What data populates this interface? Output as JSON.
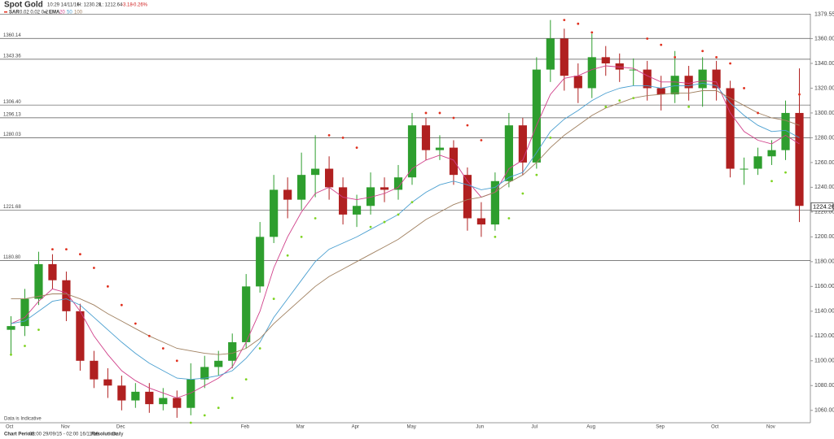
{
  "chart_data": {
    "type": "candlestick",
    "title": "Spot Gold",
    "time": "10:29 14/11/16",
    "high_text": "H: 1230.28",
    "low_text": "L: 1212.64",
    "change": "-3.18",
    "change_pct": "-0.26%",
    "sar_label": "SAR",
    "sar_params": "0.02 0.02 0.2",
    "ema_label": "EMA",
    "ema_params": [
      "20",
      "50",
      "100"
    ],
    "note": "Data is Indicative",
    "period_label": "Chart Period:",
    "period": "03:00 29/09/15 - 02:00 16/11/16",
    "resolution_label": "Resolution:",
    "resolution": "Daily",
    "last_price": 1224.26,
    "categories": [
      "Oct",
      null,
      null,
      null,
      "Nov",
      null,
      null,
      null,
      "Dec",
      null,
      null,
      null,
      null,
      null,
      null,
      null,
      null,
      "Feb",
      null,
      null,
      null,
      "Mar",
      null,
      null,
      null,
      "Apr",
      null,
      null,
      null,
      "May",
      null,
      null,
      null,
      null,
      "Jun",
      null,
      null,
      null,
      "Jul",
      null,
      null,
      null,
      "Aug",
      null,
      null,
      null,
      null,
      "Sep",
      null,
      null,
      null,
      "Oct",
      null,
      null,
      null,
      "Nov",
      null,
      null
    ],
    "open": [
      1125,
      1128,
      1150,
      1178,
      1165,
      1140,
      1100,
      1085,
      1080,
      1068,
      1075,
      1065,
      1070,
      1062,
      1085,
      1095,
      1100,
      1115,
      1160,
      1200,
      1238,
      1230,
      1250,
      1255,
      1240,
      1218,
      1225,
      1240,
      1238,
      1248,
      1290,
      1270,
      1272,
      1250,
      1215,
      1210,
      1245,
      1290,
      1260,
      1335,
      1360,
      1330,
      1320,
      1345,
      1340,
      1335,
      1335,
      1320,
      1315,
      1330,
      1320,
      1335,
      1320,
      1255,
      1255,
      1265,
      1270,
      1300
    ],
    "high": [
      1136,
      1158,
      1188,
      1186,
      1172,
      1146,
      1108,
      1094,
      1088,
      1082,
      1082,
      1078,
      1076,
      1098,
      1104,
      1108,
      1122,
      1170,
      1212,
      1250,
      1248,
      1268,
      1282,
      1265,
      1248,
      1234,
      1252,
      1248,
      1258,
      1300,
      1296,
      1282,
      1278,
      1256,
      1228,
      1252,
      1300,
      1296,
      1345,
      1375,
      1368,
      1340,
      1364,
      1354,
      1348,
      1344,
      1342,
      1330,
      1350,
      1338,
      1345,
      1342,
      1326,
      1264,
      1272,
      1278,
      1310,
      1336
    ],
    "low": [
      1104,
      1120,
      1145,
      1158,
      1132,
      1092,
      1078,
      1070,
      1060,
      1062,
      1058,
      1060,
      1054,
      1056,
      1078,
      1088,
      1094,
      1110,
      1155,
      1195,
      1215,
      1222,
      1232,
      1230,
      1210,
      1208,
      1218,
      1228,
      1230,
      1242,
      1262,
      1262,
      1242,
      1205,
      1200,
      1205,
      1240,
      1250,
      1255,
      1325,
      1318,
      1308,
      1312,
      1330,
      1325,
      1322,
      1310,
      1302,
      1308,
      1310,
      1305,
      1310,
      1248,
      1242,
      1250,
      1258,
      1262,
      1212
    ],
    "close": [
      1128,
      1150,
      1178,
      1165,
      1140,
      1100,
      1085,
      1080,
      1068,
      1075,
      1065,
      1070,
      1062,
      1085,
      1095,
      1100,
      1115,
      1160,
      1200,
      1238,
      1230,
      1250,
      1255,
      1240,
      1218,
      1225,
      1240,
      1238,
      1248,
      1290,
      1270,
      1272,
      1250,
      1215,
      1210,
      1245,
      1290,
      1260,
      1335,
      1360,
      1330,
      1320,
      1345,
      1340,
      1335,
      1335,
      1320,
      1315,
      1330,
      1320,
      1335,
      1320,
      1255,
      1255,
      1265,
      1270,
      1300,
      1225
    ],
    "up_color": "#2e9e2e",
    "down_color": "#b02020",
    "series": [
      {
        "name": "20",
        "color": "#d0408a",
        "values": [
          1130,
          1135,
          1148,
          1158,
          1155,
          1140,
          1120,
          1105,
          1092,
          1084,
          1078,
          1074,
          1070,
          1074,
          1080,
          1086,
          1095,
          1115,
          1140,
          1175,
          1200,
          1220,
          1235,
          1240,
          1232,
          1230,
          1232,
          1235,
          1240,
          1255,
          1262,
          1266,
          1262,
          1245,
          1232,
          1236,
          1255,
          1262,
          1290,
          1315,
          1328,
          1330,
          1335,
          1338,
          1337,
          1336,
          1330,
          1325,
          1325,
          1324,
          1326,
          1325,
          1300,
          1285,
          1278,
          1275,
          1282,
          1275
        ]
      },
      {
        "name": "50",
        "color": "#4a9fd0",
        "values": [
          1130,
          1132,
          1140,
          1148,
          1150,
          1145,
          1135,
          1125,
          1115,
          1106,
          1098,
          1092,
          1086,
          1085,
          1086,
          1088,
          1092,
          1102,
          1115,
          1135,
          1150,
          1165,
          1180,
          1190,
          1195,
          1200,
          1206,
          1212,
          1218,
          1228,
          1236,
          1242,
          1245,
          1242,
          1238,
          1240,
          1248,
          1252,
          1268,
          1285,
          1295,
          1302,
          1310,
          1316,
          1320,
          1322,
          1322,
          1320,
          1322,
          1322,
          1324,
          1322,
          1308,
          1298,
          1290,
          1285,
          1286,
          1280
        ]
      },
      {
        "name": "100",
        "color": "#a08060",
        "values": [
          1150,
          1150,
          1152,
          1154,
          1154,
          1150,
          1145,
          1138,
          1132,
          1126,
          1120,
          1115,
          1110,
          1108,
          1106,
          1105,
          1106,
          1110,
          1118,
          1130,
          1140,
          1150,
          1160,
          1168,
          1174,
          1180,
          1186,
          1192,
          1198,
          1206,
          1214,
          1220,
          1226,
          1230,
          1232,
          1236,
          1244,
          1250,
          1260,
          1272,
          1282,
          1290,
          1298,
          1304,
          1308,
          1312,
          1314,
          1315,
          1316,
          1316,
          1318,
          1318,
          1312,
          1306,
          1300,
          1296,
          1294,
          1290
        ]
      }
    ],
    "sar": [
      1105,
      1112,
      1125,
      1190,
      1190,
      1186,
      1175,
      1160,
      1145,
      1130,
      1120,
      1110,
      1100,
      1050,
      1056,
      1062,
      1070,
      1085,
      1110,
      1150,
      1185,
      1200,
      1215,
      1282,
      1280,
      1272,
      1208,
      1212,
      1218,
      1228,
      1300,
      1300,
      1296,
      1290,
      1278,
      1200,
      1215,
      1235,
      1250,
      1280,
      1375,
      1372,
      1365,
      1305,
      1310,
      1312,
      1360,
      1355,
      1345,
      1305,
      1350,
      1345,
      1340,
      1320,
      1300,
      1245,
      1252,
      1315
    ],
    "sar_up_color": "#7ed321",
    "sar_down_color": "#e0301e",
    "levels": [
      1379.55,
      1360.14,
      1343.36,
      {
        "value": 1306.4,
        "label": "1306.40"
      },
      1296.13,
      1280.03,
      1221.68,
      {
        "value": 1180.8,
        "label": "1180.80"
      }
    ],
    "ylim": [
      1050,
      1380
    ],
    "yticks": [
      {
        "value": 1060,
        "label": "1060.00"
      },
      {
        "value": 1080,
        "label": "1080.00"
      },
      {
        "value": 1100,
        "label": "1100.00"
      },
      {
        "value": 1120,
        "label": "1120.00"
      },
      {
        "value": 1140,
        "label": "1140.00"
      },
      {
        "value": 1160,
        "label": "1160.00"
      },
      {
        "value": 1180,
        "label": "1180.00"
      },
      {
        "value": 1200,
        "label": "1200.00"
      },
      {
        "value": 1220,
        "label": "1220.00"
      },
      {
        "value": 1240,
        "label": "1240.00"
      },
      {
        "value": 1260,
        "label": "1260.00"
      },
      {
        "value": 1280,
        "label": "1280.00"
      },
      {
        "value": 1300,
        "label": "1300.00"
      },
      {
        "value": 1320,
        "label": "1320.00"
      },
      {
        "value": 1340,
        "label": "1340.00"
      },
      {
        "value": 1360,
        "label": "1360.00"
      }
    ]
  }
}
